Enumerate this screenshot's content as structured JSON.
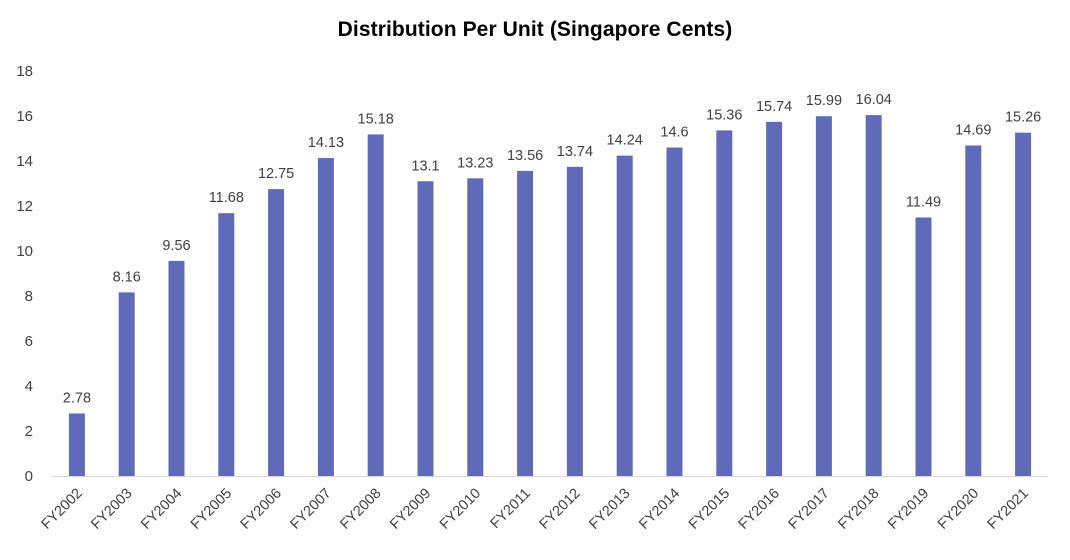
{
  "chart_data": {
    "type": "bar",
    "title": "Distribution Per Unit (Singapore Cents)",
    "xlabel": "",
    "ylabel": "",
    "ylim": [
      0,
      18
    ],
    "yticks": [
      0,
      2,
      4,
      6,
      8,
      10,
      12,
      14,
      16,
      18
    ],
    "grid": false,
    "legend": "none",
    "bar_color": "#5f6bb8",
    "categories": [
      "FY2002",
      "FY2003",
      "FY2004",
      "FY2005",
      "FY2006",
      "FY2007",
      "FY2008",
      "FY2009",
      "FY2010",
      "FY2011",
      "FY2012",
      "FY2013",
      "FY2014",
      "FY2015",
      "FY2016",
      "FY2017",
      "FY2018",
      "FY2019",
      "FY2020",
      "FY2021"
    ],
    "values": [
      2.78,
      8.16,
      9.56,
      11.68,
      12.75,
      14.13,
      15.18,
      13.1,
      13.23,
      13.56,
      13.74,
      14.24,
      14.6,
      15.36,
      15.74,
      15.99,
      16.04,
      11.49,
      14.69,
      15.26
    ],
    "value_labels": [
      "2.78",
      "8.16",
      "9.56",
      "11.68",
      "12.75",
      "14.13",
      "15.18",
      "13.1",
      "13.23",
      "13.56",
      "13.74",
      "14.24",
      "14.6",
      "15.36",
      "15.74",
      "15.99",
      "16.04",
      "11.49",
      "14.69",
      "15.26"
    ]
  }
}
